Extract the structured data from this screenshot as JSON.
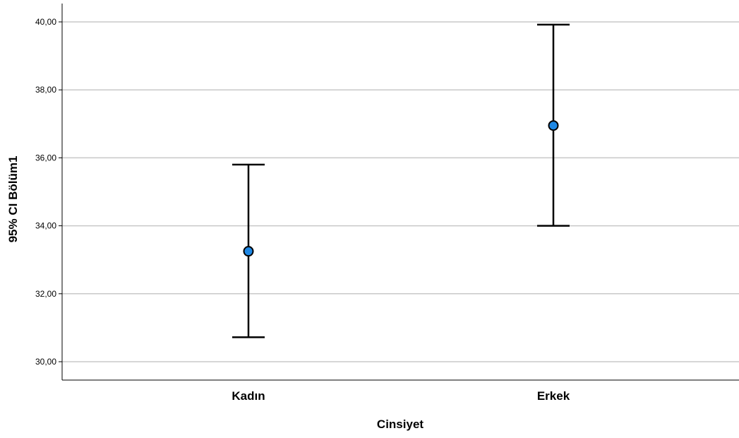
{
  "chart_data": {
    "type": "errorbar",
    "xlabel": "Cinsiyet",
    "ylabel": "95% CI Bölüm1",
    "ylim": [
      29.5,
      40.6
    ],
    "yticks": [
      30,
      32,
      34,
      36,
      38,
      40
    ],
    "ytick_labels": [
      "30,00",
      "32,00",
      "34,00",
      "36,00",
      "38,00",
      "40,00"
    ],
    "grid": true,
    "categories": [
      "Kadın",
      "Erkek"
    ],
    "series": [
      {
        "means": [
          33.25,
          36.95
        ],
        "lower": [
          30.72,
          34.0
        ],
        "upper": [
          35.8,
          39.92
        ]
      }
    ],
    "colors": {
      "marker": "#1e88e5",
      "marker_edge": "#000000",
      "grid": "#c8c8c8",
      "bar": "#000000"
    }
  }
}
